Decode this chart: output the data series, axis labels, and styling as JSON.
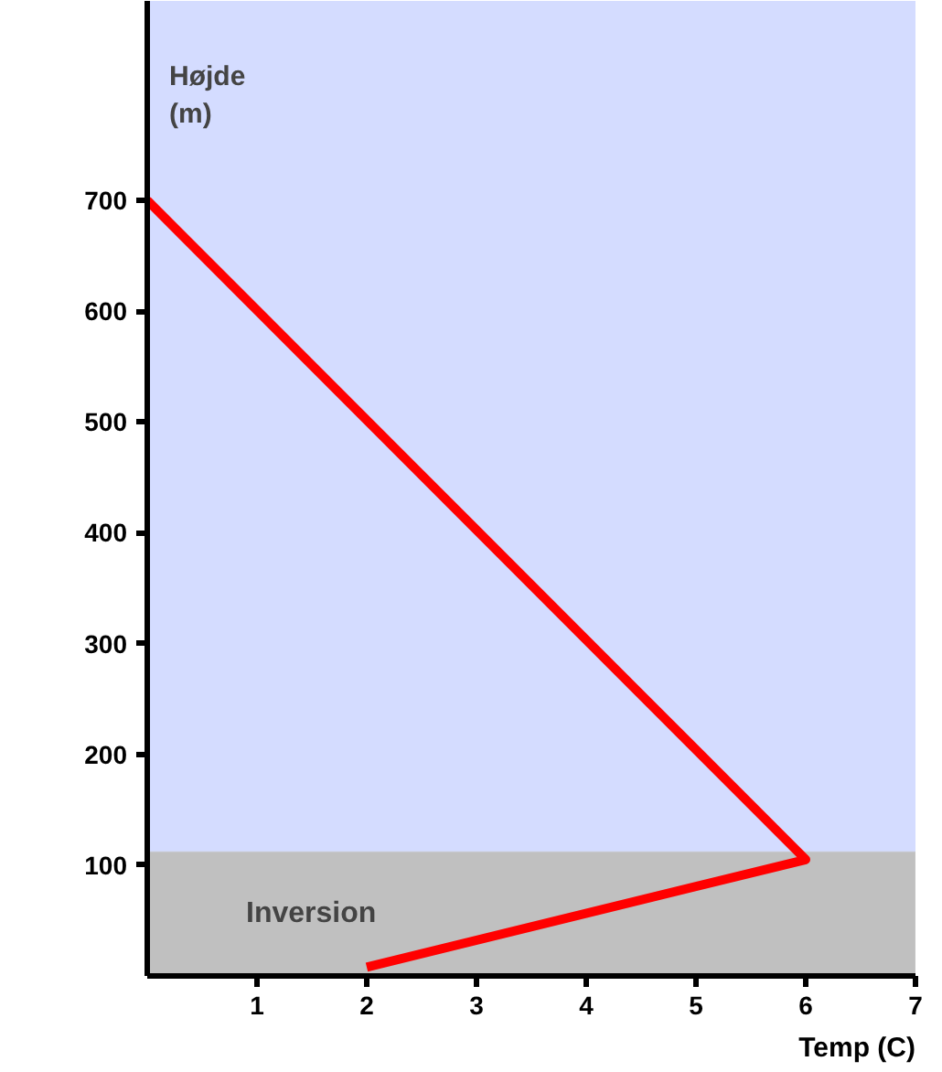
{
  "chart_data": {
    "type": "line",
    "xlabel": "Temp (C)",
    "ylabel": "Højde\n(m)",
    "x": [
      0,
      6,
      2
    ],
    "series": [
      {
        "color": "#ff0000",
        "values": [
          700,
          105,
          8
        ]
      }
    ],
    "xlim": [
      0,
      7
    ],
    "ylim": [
      0,
      880
    ],
    "xticks": [
      1,
      2,
      3,
      4,
      5,
      6,
      7
    ],
    "yticks": [
      100,
      200,
      300,
      400,
      500,
      600,
      700
    ],
    "bands": [
      {
        "axis": "y",
        "from": 0,
        "to": 112,
        "label": "Inversion",
        "color": "#c0c0c0"
      }
    ],
    "grid": false,
    "marker": "none",
    "line_style": "solid"
  }
}
